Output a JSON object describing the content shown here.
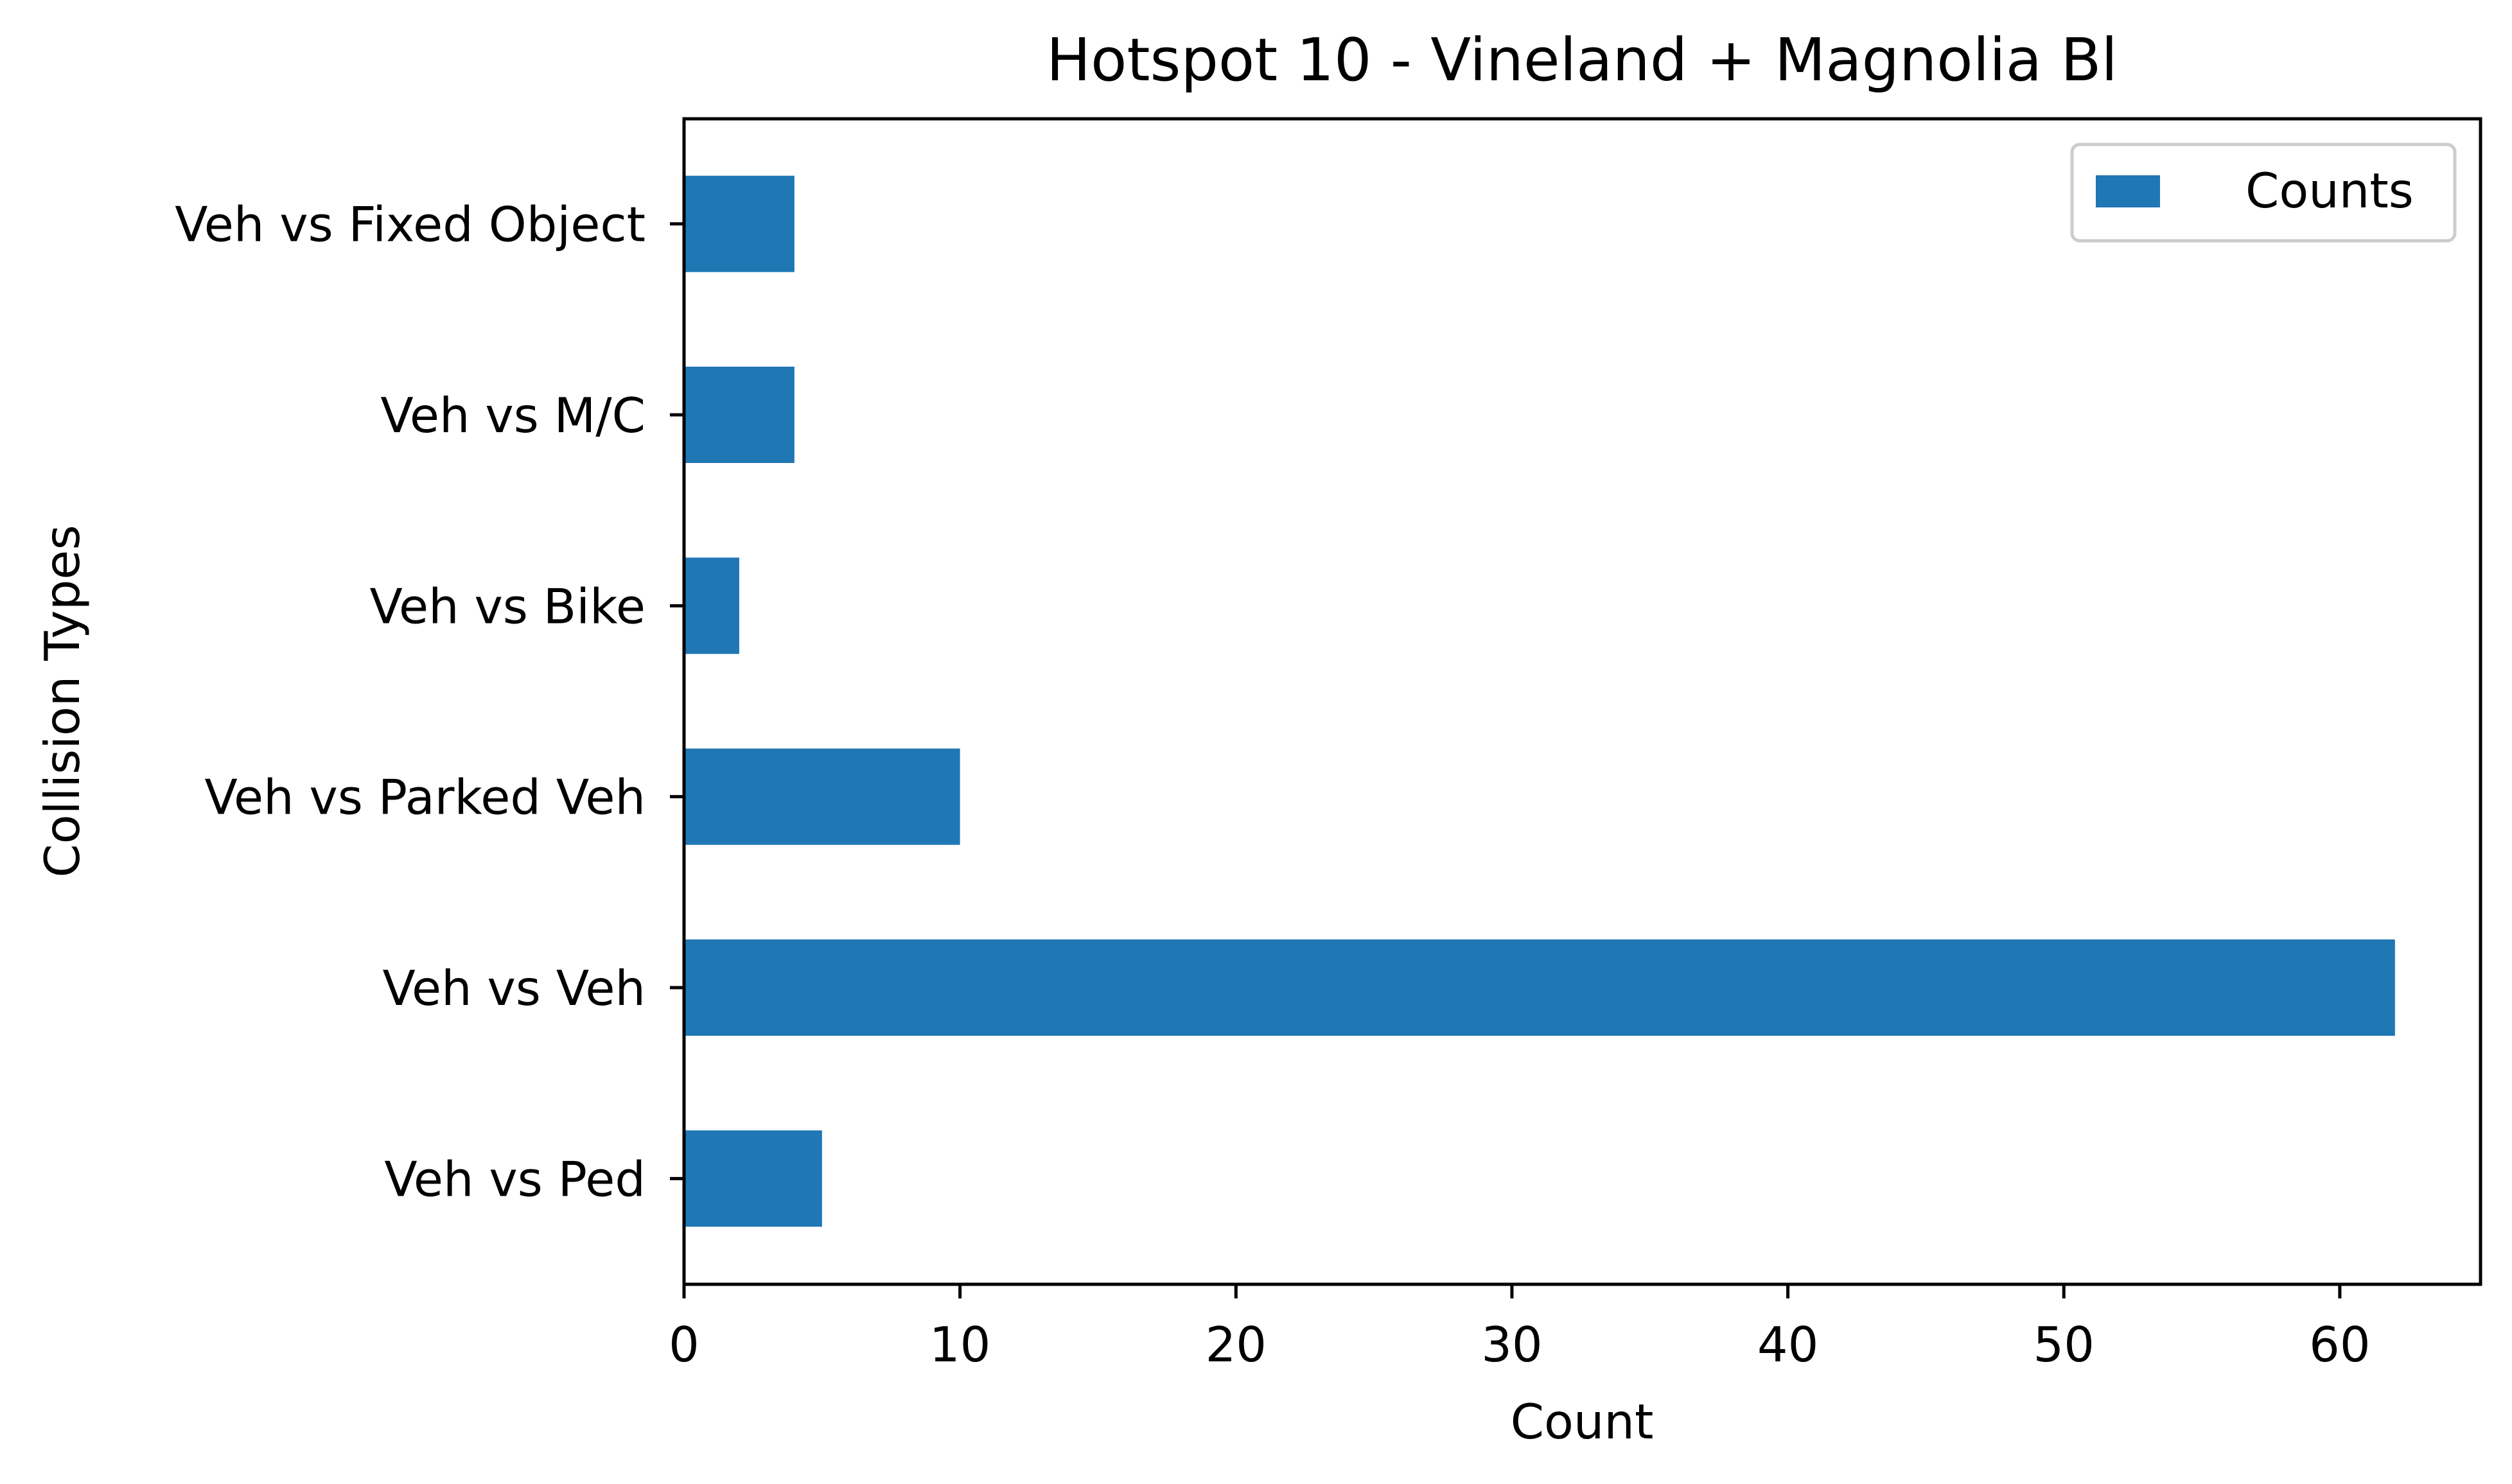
{
  "chart_data": {
    "type": "bar",
    "orientation": "horizontal",
    "title": "Hotspot 10 - Vineland + Magnolia Bl",
    "xlabel": "Count",
    "ylabel": "Collision Types",
    "categories": [
      "Veh vs Ped",
      "Veh vs Veh",
      "Veh vs Parked Veh",
      "Veh vs Bike",
      "Veh vs M/C",
      "Veh vs Fixed Object"
    ],
    "series": [
      {
        "name": "Counts",
        "values": [
          5,
          62,
          10,
          2,
          4,
          4
        ],
        "color": "#1f77b4"
      }
    ],
    "xlim": [
      0,
      65.1
    ],
    "xticks": [
      0,
      10,
      20,
      30,
      40,
      50,
      60
    ],
    "xtick_labels": [
      "0",
      "10",
      "20",
      "30",
      "40",
      "50",
      "60"
    ],
    "grid": false,
    "legend": {
      "position": "upper-right",
      "entries": [
        "Counts"
      ]
    }
  }
}
